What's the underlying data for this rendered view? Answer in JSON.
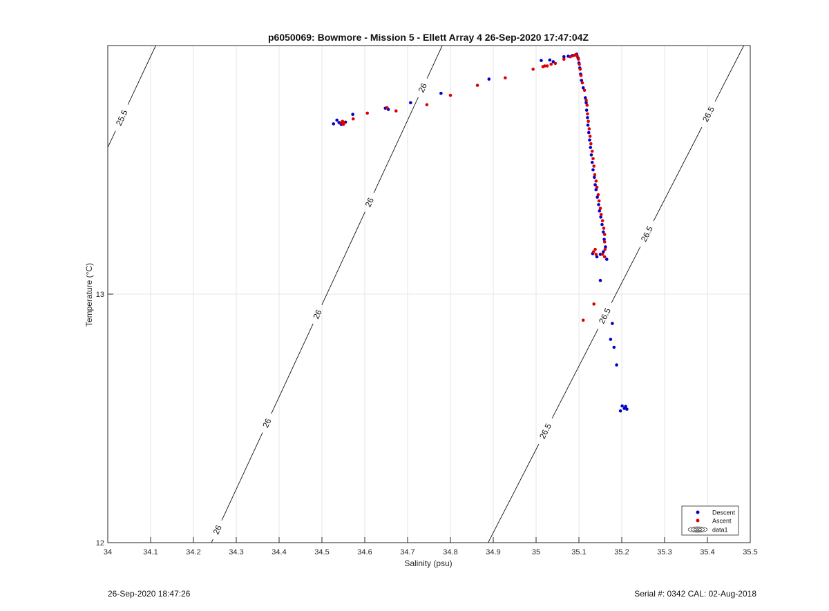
{
  "chart_data": {
    "type": "scatter",
    "title": "p6050069: Bowmore - Mission 5 - Ellett Array 4 26-Sep-2020 17:47:04Z",
    "xlabel": "Salinity (psu)",
    "ylabel": "Temperature (°C)",
    "xlim": [
      34,
      35.5
    ],
    "ylim": [
      12,
      14
    ],
    "xticks": [
      34,
      34.1,
      34.2,
      34.3,
      34.4,
      34.5,
      34.6,
      34.7,
      34.8,
      34.9,
      35,
      35.1,
      35.2,
      35.3,
      35.4,
      35.5
    ],
    "xtick_labels": [
      "34",
      "34.1",
      "34.2",
      "34.3",
      "34.4",
      "34.5",
      "34.6",
      "34.7",
      "34.8",
      "34.9",
      "35",
      "35.1",
      "35.2",
      "35.3",
      "35.4",
      "35.5"
    ],
    "yticks": [
      12,
      13
    ],
    "ytick_labels": [
      "12",
      "13"
    ],
    "grid": true,
    "legend_position": "bottom-right",
    "series": [
      {
        "name": "Descent",
        "color": "#0000cc",
        "points": [
          [
            34.527,
            13.685
          ],
          [
            34.535,
            13.7
          ],
          [
            34.54,
            13.69
          ],
          [
            34.545,
            13.683
          ],
          [
            34.55,
            13.688
          ],
          [
            34.555,
            13.692
          ],
          [
            34.572,
            13.723
          ],
          [
            34.648,
            13.748
          ],
          [
            34.655,
            13.743
          ],
          [
            34.707,
            13.77
          ],
          [
            34.778,
            13.808
          ],
          [
            34.89,
            13.865
          ],
          [
            35.012,
            13.94
          ],
          [
            35.032,
            13.942
          ],
          [
            35.04,
            13.935
          ],
          [
            35.065,
            13.955
          ],
          [
            35.075,
            13.957
          ],
          [
            35.085,
            13.96
          ],
          [
            35.095,
            13.965
          ],
          [
            35.098,
            13.95
          ],
          [
            35.1,
            13.93
          ],
          [
            35.102,
            13.91
          ],
          [
            35.104,
            13.885
          ],
          [
            35.106,
            13.86
          ],
          [
            35.11,
            13.83
          ],
          [
            35.115,
            13.79
          ],
          [
            35.117,
            13.77
          ],
          [
            35.118,
            13.74
          ],
          [
            35.12,
            13.71
          ],
          [
            35.121,
            13.68
          ],
          [
            35.123,
            13.65
          ],
          [
            35.125,
            13.62
          ],
          [
            35.127,
            13.59
          ],
          [
            35.129,
            13.56
          ],
          [
            35.131,
            13.53
          ],
          [
            35.133,
            13.5
          ],
          [
            35.136,
            13.47
          ],
          [
            35.138,
            13.44
          ],
          [
            35.14,
            13.42
          ],
          [
            35.143,
            13.39
          ],
          [
            35.146,
            13.36
          ],
          [
            35.148,
            13.335
          ],
          [
            35.151,
            13.31
          ],
          [
            35.154,
            13.28
          ],
          [
            35.157,
            13.25
          ],
          [
            35.159,
            13.22
          ],
          [
            35.162,
            13.19
          ],
          [
            35.157,
            13.17
          ],
          [
            35.15,
            13.16
          ],
          [
            35.142,
            13.15
          ],
          [
            35.132,
            13.163
          ],
          [
            35.165,
            13.14
          ],
          [
            35.15,
            13.055
          ],
          [
            35.178,
            12.882
          ],
          [
            35.174,
            12.818
          ],
          [
            35.182,
            12.786
          ],
          [
            35.188,
            12.715
          ],
          [
            35.197,
            12.53
          ],
          [
            35.201,
            12.55
          ],
          [
            35.206,
            12.54
          ],
          [
            35.209,
            12.548
          ],
          [
            35.212,
            12.537
          ]
        ]
      },
      {
        "name": "Ascent",
        "color": "#dd0000",
        "points": [
          [
            34.545,
            13.69
          ],
          [
            34.55,
            13.683
          ],
          [
            34.548,
            13.695
          ],
          [
            34.552,
            13.69
          ],
          [
            34.573,
            13.705
          ],
          [
            34.606,
            13.728
          ],
          [
            34.652,
            13.75
          ],
          [
            34.673,
            13.737
          ],
          [
            34.745,
            13.762
          ],
          [
            34.8,
            13.8
          ],
          [
            34.863,
            13.84
          ],
          [
            34.928,
            13.87
          ],
          [
            34.993,
            13.905
          ],
          [
            35.016,
            13.915
          ],
          [
            35.02,
            13.918
          ],
          [
            35.026,
            13.918
          ],
          [
            35.035,
            13.925
          ],
          [
            35.045,
            13.928
          ],
          [
            35.065,
            13.945
          ],
          [
            35.08,
            13.955
          ],
          [
            35.088,
            13.96
          ],
          [
            35.092,
            13.963
          ],
          [
            35.094,
            13.962
          ],
          [
            35.096,
            13.957
          ],
          [
            35.099,
            13.945
          ],
          [
            35.101,
            13.925
          ],
          [
            35.103,
            13.905
          ],
          [
            35.105,
            13.88
          ],
          [
            35.108,
            13.85
          ],
          [
            35.113,
            13.82
          ],
          [
            35.117,
            13.78
          ],
          [
            35.119,
            13.76
          ],
          [
            35.12,
            13.725
          ],
          [
            35.122,
            13.695
          ],
          [
            35.124,
            13.665
          ],
          [
            35.126,
            13.635
          ],
          [
            35.128,
            13.605
          ],
          [
            35.131,
            13.575
          ],
          [
            35.133,
            13.545
          ],
          [
            35.135,
            13.515
          ],
          [
            35.137,
            13.48
          ],
          [
            35.14,
            13.455
          ],
          [
            35.142,
            13.43
          ],
          [
            35.145,
            13.4
          ],
          [
            35.147,
            13.375
          ],
          [
            35.15,
            13.345
          ],
          [
            35.152,
            13.32
          ],
          [
            35.155,
            13.295
          ],
          [
            35.158,
            13.265
          ],
          [
            35.16,
            13.24
          ],
          [
            35.16,
            13.21
          ],
          [
            35.161,
            13.18
          ],
          [
            35.138,
            13.18
          ],
          [
            35.134,
            13.17
          ],
          [
            35.14,
            13.16
          ],
          [
            35.155,
            13.16
          ],
          [
            35.16,
            13.15
          ],
          [
            35.135,
            12.96
          ],
          [
            35.11,
            12.895
          ]
        ]
      }
    ],
    "legend_entries": [
      "Descent",
      "Ascent",
      "data1"
    ],
    "contours": [
      {
        "label": "25.5",
        "line": [
          [
            34.0,
            13.59
          ],
          [
            34.112,
            14.0
          ]
        ],
        "labels_at": [
          [
            34.032,
            13.71
          ]
        ]
      },
      {
        "label": "26",
        "line": [
          [
            34.242,
            12.0
          ],
          [
            34.781,
            14.0
          ]
        ],
        "labels_at": [
          [
            34.258,
            12.05
          ],
          [
            34.373,
            12.48
          ],
          [
            34.488,
            12.92
          ],
          [
            34.61,
            13.37
          ],
          [
            34.735,
            13.83
          ]
        ]
      },
      {
        "label": "26.5",
        "line": [
          [
            34.888,
            12.0
          ],
          [
            35.485,
            14.0
          ]
        ],
        "labels_at": [
          [
            35.02,
            12.45
          ],
          [
            35.152,
            12.92
          ],
          [
            35.25,
            13.25
          ],
          [
            35.395,
            13.73
          ]
        ]
      }
    ],
    "footer_left": "26-Sep-2020 18:47:26",
    "footer_right": "Serial #: 0342  CAL: 02-Aug-2018"
  }
}
